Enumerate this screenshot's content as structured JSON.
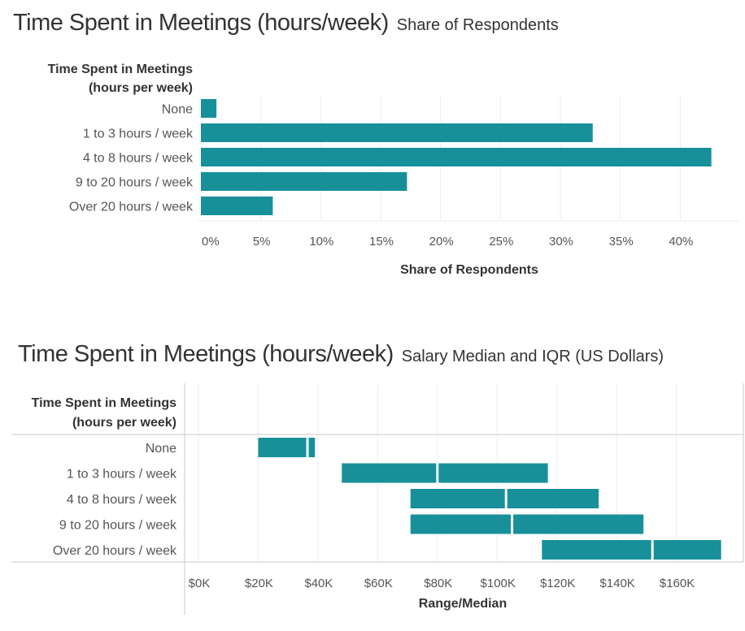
{
  "chart_data": [
    {
      "type": "bar",
      "orientation": "horizontal",
      "title": "Time Spent in Meetings (hours/week)",
      "subtitle": "Share of Respondents",
      "row_header": [
        "Time Spent in Meetings",
        "(hours per week)"
      ],
      "categories": [
        "None",
        "1 to 3 hours / week",
        "4 to 8 hours / week",
        "9 to 20 hours / week",
        "Over 20 hours / week"
      ],
      "values": [
        1.3,
        32.7,
        42.6,
        17.2,
        6.0
      ],
      "unit": "%",
      "xlabel": "Share of Respondents",
      "xlim": [
        0,
        45
      ],
      "xticks": [
        0,
        5,
        10,
        15,
        20,
        25,
        30,
        35,
        40
      ],
      "xtick_labels": [
        "0%",
        "5%",
        "10%",
        "15%",
        "20%",
        "25%",
        "30%",
        "35%",
        "40%"
      ],
      "grid": true,
      "color": "#17909a"
    },
    {
      "type": "bar",
      "orientation": "horizontal",
      "style": "range with median gap",
      "title": "Time Spent in Meetings (hours/week)",
      "subtitle": "Salary Median and IQR (US Dollars)",
      "row_header": [
        "Time Spent in Meetings",
        "(hours per week)"
      ],
      "categories": [
        "None",
        "1 to 3 hours / week",
        "4 to 8 hours / week",
        "9 to 20 hours / week",
        "Over 20 hours / week"
      ],
      "ranges": [
        {
          "q1": 20000,
          "median": 36500,
          "q3": 39000
        },
        {
          "q1": 48000,
          "median": 80000,
          "q3": 117000
        },
        {
          "q1": 71000,
          "median": 103000,
          "q3": 134000
        },
        {
          "q1": 71000,
          "median": 105000,
          "q3": 149000
        },
        {
          "q1": 115000,
          "median": 152000,
          "q3": 175000
        }
      ],
      "xlabel": "Range/Median",
      "xlim": [
        0,
        180000
      ],
      "xticks": [
        0,
        20000,
        40000,
        60000,
        80000,
        100000,
        120000,
        140000,
        160000
      ],
      "xtick_labels": [
        "$0K",
        "$20K",
        "$40K",
        "$60K",
        "$80K",
        "$100K",
        "$120K",
        "$140K",
        "$160K"
      ],
      "grid": true,
      "color": "#17909a"
    }
  ]
}
